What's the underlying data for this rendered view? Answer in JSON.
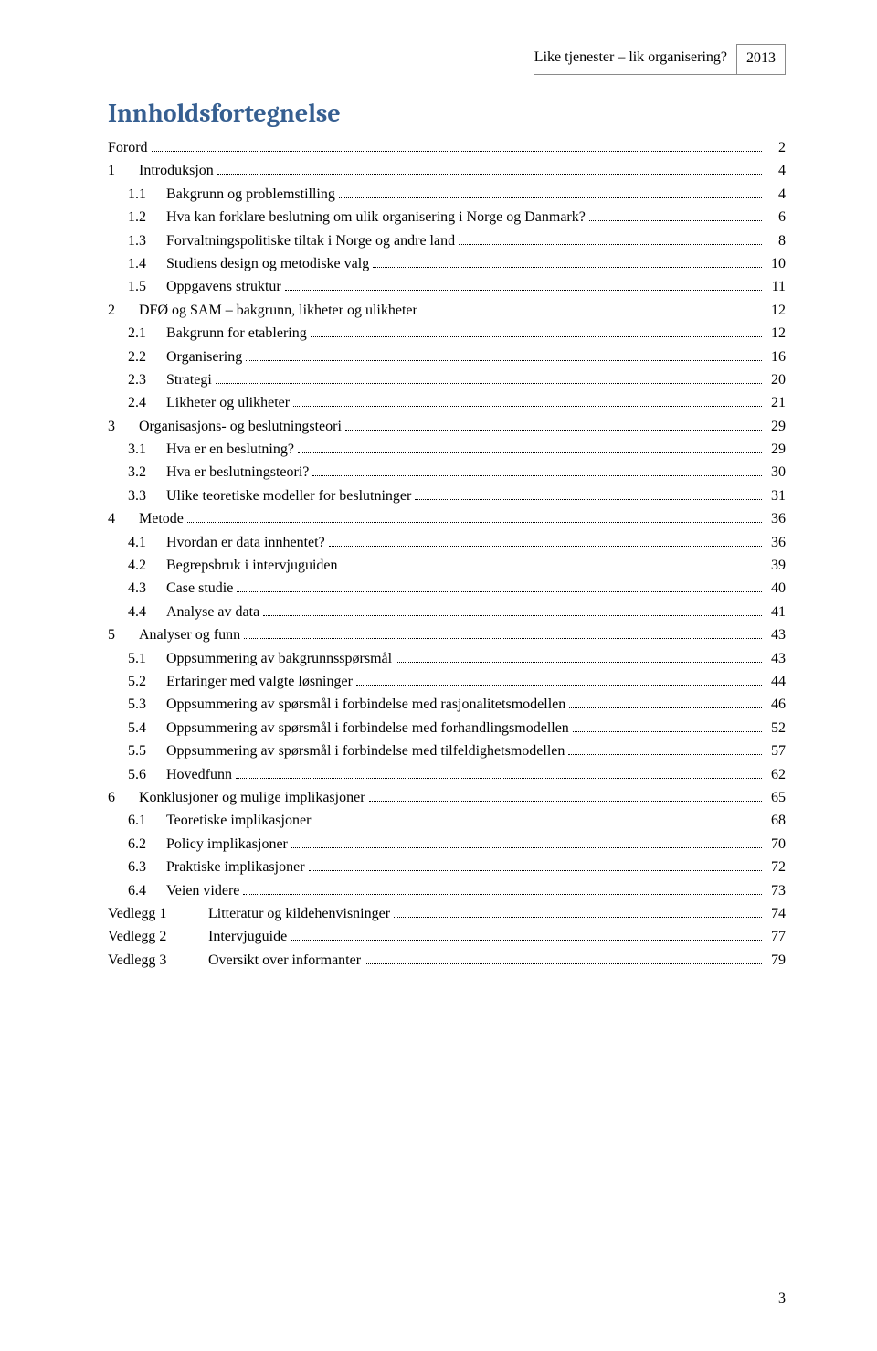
{
  "header": {
    "title": "Like tjenester – lik organisering?",
    "year": "2013"
  },
  "toc_title": "Innholdsfortegnelse",
  "toc": [
    {
      "level": 0,
      "num": "",
      "label": "Forord",
      "page": "2",
      "numless": true
    },
    {
      "level": 0,
      "num": "1",
      "label": "Introduksjon",
      "page": "4"
    },
    {
      "level": 1,
      "num": "1.1",
      "label": "Bakgrunn og problemstilling",
      "page": "4"
    },
    {
      "level": 1,
      "num": "1.2",
      "label": "Hva kan forklare beslutning om ulik organisering i Norge og Danmark?",
      "page": "6"
    },
    {
      "level": 1,
      "num": "1.3",
      "label": "Forvaltningspolitiske tiltak i Norge og andre land",
      "page": "8"
    },
    {
      "level": 1,
      "num": "1.4",
      "label": "Studiens design og metodiske valg",
      "page": "10"
    },
    {
      "level": 1,
      "num": "1.5",
      "label": "Oppgavens struktur",
      "page": "11"
    },
    {
      "level": 0,
      "num": "2",
      "label": "DFØ og SAM – bakgrunn, likheter og ulikheter",
      "page": "12"
    },
    {
      "level": 1,
      "num": "2.1",
      "label": "Bakgrunn for etablering",
      "page": "12"
    },
    {
      "level": 1,
      "num": "2.2",
      "label": "Organisering",
      "page": "16"
    },
    {
      "level": 1,
      "num": "2.3",
      "label": "Strategi",
      "page": "20"
    },
    {
      "level": 1,
      "num": "2.4",
      "label": "Likheter og ulikheter",
      "page": "21"
    },
    {
      "level": 0,
      "num": "3",
      "label": "Organisasjons- og beslutningsteori",
      "page": "29"
    },
    {
      "level": 1,
      "num": "3.1",
      "label": "Hva er en beslutning?",
      "page": "29"
    },
    {
      "level": 1,
      "num": "3.2",
      "label": "Hva er beslutningsteori?",
      "page": "30"
    },
    {
      "level": 1,
      "num": "3.3",
      "label": "Ulike teoretiske modeller for beslutninger",
      "page": "31"
    },
    {
      "level": 0,
      "num": "4",
      "label": "Metode",
      "page": "36"
    },
    {
      "level": 1,
      "num": "4.1",
      "label": "Hvordan er data innhentet?",
      "page": "36"
    },
    {
      "level": 1,
      "num": "4.2",
      "label": "Begrepsbruk i intervjuguiden",
      "page": "39"
    },
    {
      "level": 1,
      "num": "4.3",
      "label": "Case studie",
      "page": "40"
    },
    {
      "level": 1,
      "num": "4.4",
      "label": "Analyse av data",
      "page": "41"
    },
    {
      "level": 0,
      "num": "5",
      "label": "Analyser og funn",
      "page": "43"
    },
    {
      "level": 1,
      "num": "5.1",
      "label": "Oppsummering av bakgrunnsspørsmål",
      "page": "43"
    },
    {
      "level": 1,
      "num": "5.2",
      "label": "Erfaringer med valgte løsninger",
      "page": "44"
    },
    {
      "level": 1,
      "num": "5.3",
      "label": "Oppsummering av spørsmål i forbindelse med rasjonalitetsmodellen",
      "page": "46"
    },
    {
      "level": 1,
      "num": "5.4",
      "label": "Oppsummering av spørsmål i forbindelse med forhandlingsmodellen",
      "page": "52"
    },
    {
      "level": 1,
      "num": "5.5",
      "label": "Oppsummering av spørsmål i forbindelse med tilfeldighetsmodellen",
      "page": "57"
    },
    {
      "level": 1,
      "num": "5.6",
      "label": "Hovedfunn",
      "page": "62"
    },
    {
      "level": 0,
      "num": "6",
      "label": "Konklusjoner og mulige implikasjoner",
      "page": "65"
    },
    {
      "level": 1,
      "num": "6.1",
      "label": "Teoretiske implikasjoner",
      "page": "68"
    },
    {
      "level": 1,
      "num": "6.2",
      "label": "Policy implikasjoner",
      "page": "70"
    },
    {
      "level": 1,
      "num": "6.3",
      "label": "Praktiske implikasjoner",
      "page": "72"
    },
    {
      "level": 1,
      "num": "6.4",
      "label": "Veien videre",
      "page": "73"
    },
    {
      "level": 0,
      "num": "Vedlegg 1",
      "label": "Litteratur og kildehenvisninger",
      "page": "74",
      "vedlegg": true
    },
    {
      "level": 0,
      "num": "Vedlegg 2",
      "label": "Intervjuguide",
      "page": "77",
      "vedlegg": true
    },
    {
      "level": 0,
      "num": "Vedlegg 3",
      "label": "Oversikt over informanter",
      "page": "79",
      "vedlegg": true
    }
  ],
  "page_number": "3",
  "colors": {
    "heading": "#365f91",
    "text": "#000000",
    "border": "#8a8a8a",
    "background": "#ffffff"
  },
  "typography": {
    "body_font": "Times New Roman",
    "heading_font": "Cambria",
    "body_size_pt": 12,
    "heading_size_pt": 20
  }
}
